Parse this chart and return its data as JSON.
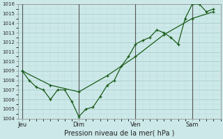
{
  "xlabel": "Pression niveau de la mer( hPa )",
  "bg_color": "#cce8e8",
  "grid_major_color": "#aacece",
  "grid_minor_color": "#bbdada",
  "line_color": "#1a5c1a",
  "ylim": [
    1004,
    1016
  ],
  "yticks": [
    1004,
    1005,
    1006,
    1007,
    1008,
    1009,
    1010,
    1011,
    1012,
    1013,
    1014,
    1015,
    1016
  ],
  "day_labels": [
    "Jeu",
    "Dim",
    "Ven",
    "Sam"
  ],
  "day_positions": [
    0.0,
    4.0,
    8.0,
    12.0
  ],
  "xlim": [
    -0.3,
    14.0
  ],
  "series1_x": [
    0,
    0.5,
    1.0,
    1.5,
    2.0,
    2.5,
    3.0,
    3.5,
    4.0,
    4.5,
    5.0,
    5.5,
    6.0,
    6.5,
    7.0,
    7.5,
    8.0,
    8.5,
    9.0,
    9.5,
    10.0,
    10.5,
    11.0,
    11.5,
    12.0,
    12.5,
    13.0,
    13.5
  ],
  "series1_y": [
    1009,
    1008,
    1007.3,
    1007.0,
    1006.0,
    1007.0,
    1007.0,
    1005.8,
    1004.2,
    1005.0,
    1005.2,
    1006.3,
    1007.5,
    1008.0,
    1009.5,
    1010.5,
    1011.8,
    1012.2,
    1012.5,
    1013.3,
    1013.0,
    1012.5,
    1011.8,
    1014.5,
    1016.0,
    1016.0,
    1015.2,
    1015.5
  ],
  "series2_x": [
    0,
    2.0,
    4.0,
    6.0,
    8.0,
    10.0,
    12.0,
    13.5
  ],
  "series2_y": [
    1009,
    1007.5,
    1006.8,
    1008.5,
    1010.5,
    1012.8,
    1014.5,
    1015.2
  ]
}
